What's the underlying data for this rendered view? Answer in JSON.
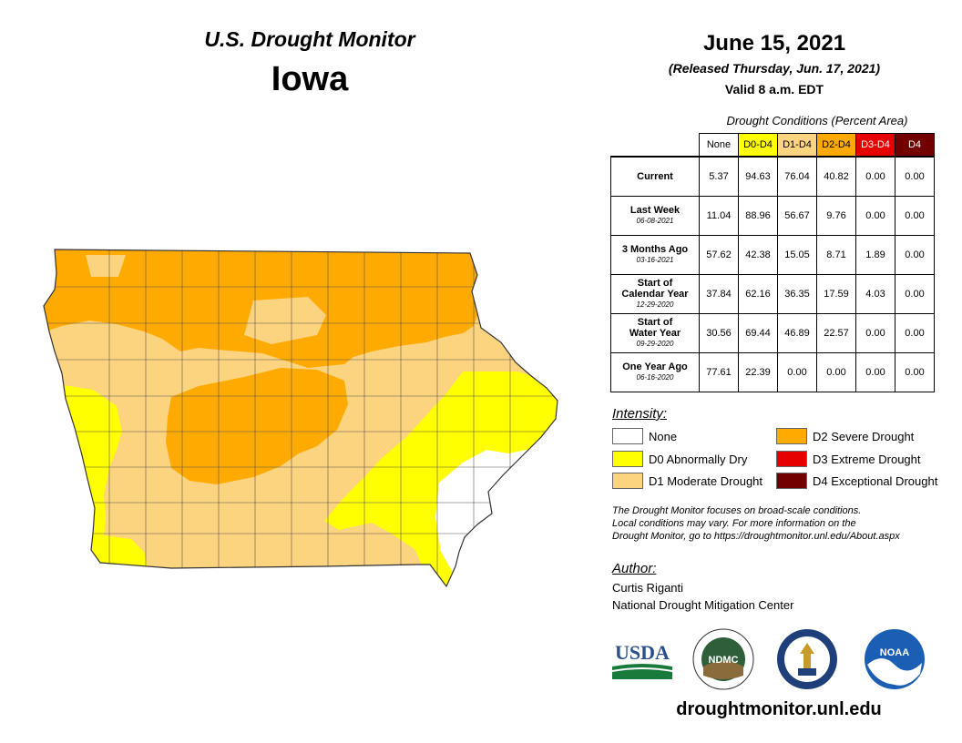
{
  "header": {
    "title": "U.S. Drought Monitor",
    "state": "Iowa",
    "date": "June 15, 2021",
    "released": "(Released Thursday, Jun. 17, 2021)",
    "valid": "Valid 8 a.m. EDT"
  },
  "conditions": {
    "title": "Drought Conditions (Percent Area)",
    "columns": [
      {
        "label": "None",
        "color": "#ffffff",
        "text_color": "#000000"
      },
      {
        "label": "D0-D4",
        "color": "#ffff00",
        "text_color": "#000000"
      },
      {
        "label": "D1-D4",
        "color": "#fcd37f",
        "text_color": "#000000"
      },
      {
        "label": "D2-D4",
        "color": "#ffaa00",
        "text_color": "#000000"
      },
      {
        "label": "D3-D4",
        "color": "#e60000",
        "text_color": "#ffffff"
      },
      {
        "label": "D4",
        "color": "#730000",
        "text_color": "#ffffff"
      }
    ],
    "rows": [
      {
        "label": [
          "Current"
        ],
        "date": "",
        "values": [
          "5.37",
          "94.63",
          "76.04",
          "40.82",
          "0.00",
          "0.00"
        ]
      },
      {
        "label": [
          "Last Week"
        ],
        "date": "06-08-2021",
        "values": [
          "11.04",
          "88.96",
          "56.67",
          "9.76",
          "0.00",
          "0.00"
        ]
      },
      {
        "label": [
          "3 Months Ago"
        ],
        "date": "03-16-2021",
        "values": [
          "57.62",
          "42.38",
          "15.05",
          "8.71",
          "1.89",
          "0.00"
        ]
      },
      {
        "label": [
          "Start of",
          "Calendar Year"
        ],
        "date": "12-29-2020",
        "values": [
          "37.84",
          "62.16",
          "36.35",
          "17.59",
          "4.03",
          "0.00"
        ]
      },
      {
        "label": [
          "Start of",
          "Water Year"
        ],
        "date": "09-29-2020",
        "values": [
          "30.56",
          "69.44",
          "46.89",
          "22.57",
          "0.00",
          "0.00"
        ]
      },
      {
        "label": [
          "One Year Ago"
        ],
        "date": "06-16-2020",
        "values": [
          "77.61",
          "22.39",
          "0.00",
          "0.00",
          "0.00",
          "0.00"
        ]
      }
    ]
  },
  "legend": {
    "title": "Intensity:",
    "items": [
      {
        "label": "None",
        "color": "#ffffff"
      },
      {
        "label": "D0 Abnormally Dry",
        "color": "#ffff00"
      },
      {
        "label": "D1 Moderate Drought",
        "color": "#fcd37f"
      },
      {
        "label": "D2 Severe Drought",
        "color": "#ffaa00"
      },
      {
        "label": "D3 Extreme Drought",
        "color": "#e60000"
      },
      {
        "label": "D4 Exceptional Drought",
        "color": "#730000"
      }
    ]
  },
  "note": {
    "line1": "The Drought Monitor focuses on broad-scale conditions.",
    "line2": "Local conditions may vary. For more information on the",
    "line3": "Drought Monitor, go to https://droughtmonitor.unl.edu/About.aspx"
  },
  "author": {
    "title": "Author:",
    "name": "Curtis Riganti",
    "org": "National Drought Mitigation Center"
  },
  "logos": {
    "usda": "USDA",
    "ndmc": "NDMC",
    "noaa": "NOAA"
  },
  "site": "droughtmonitor.unl.edu"
}
